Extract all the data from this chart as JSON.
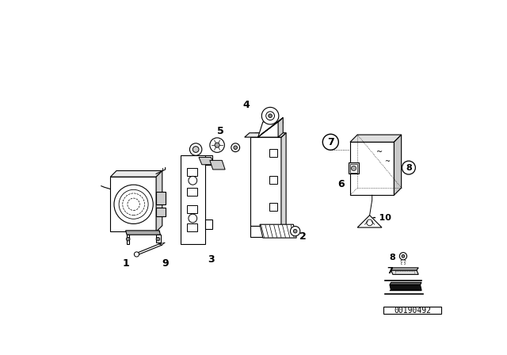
{
  "background_color": "#ffffff",
  "part_number": "00190492",
  "fig_width": 6.4,
  "fig_height": 4.48,
  "dpi": 100,
  "lw": 0.8,
  "lc": "black"
}
